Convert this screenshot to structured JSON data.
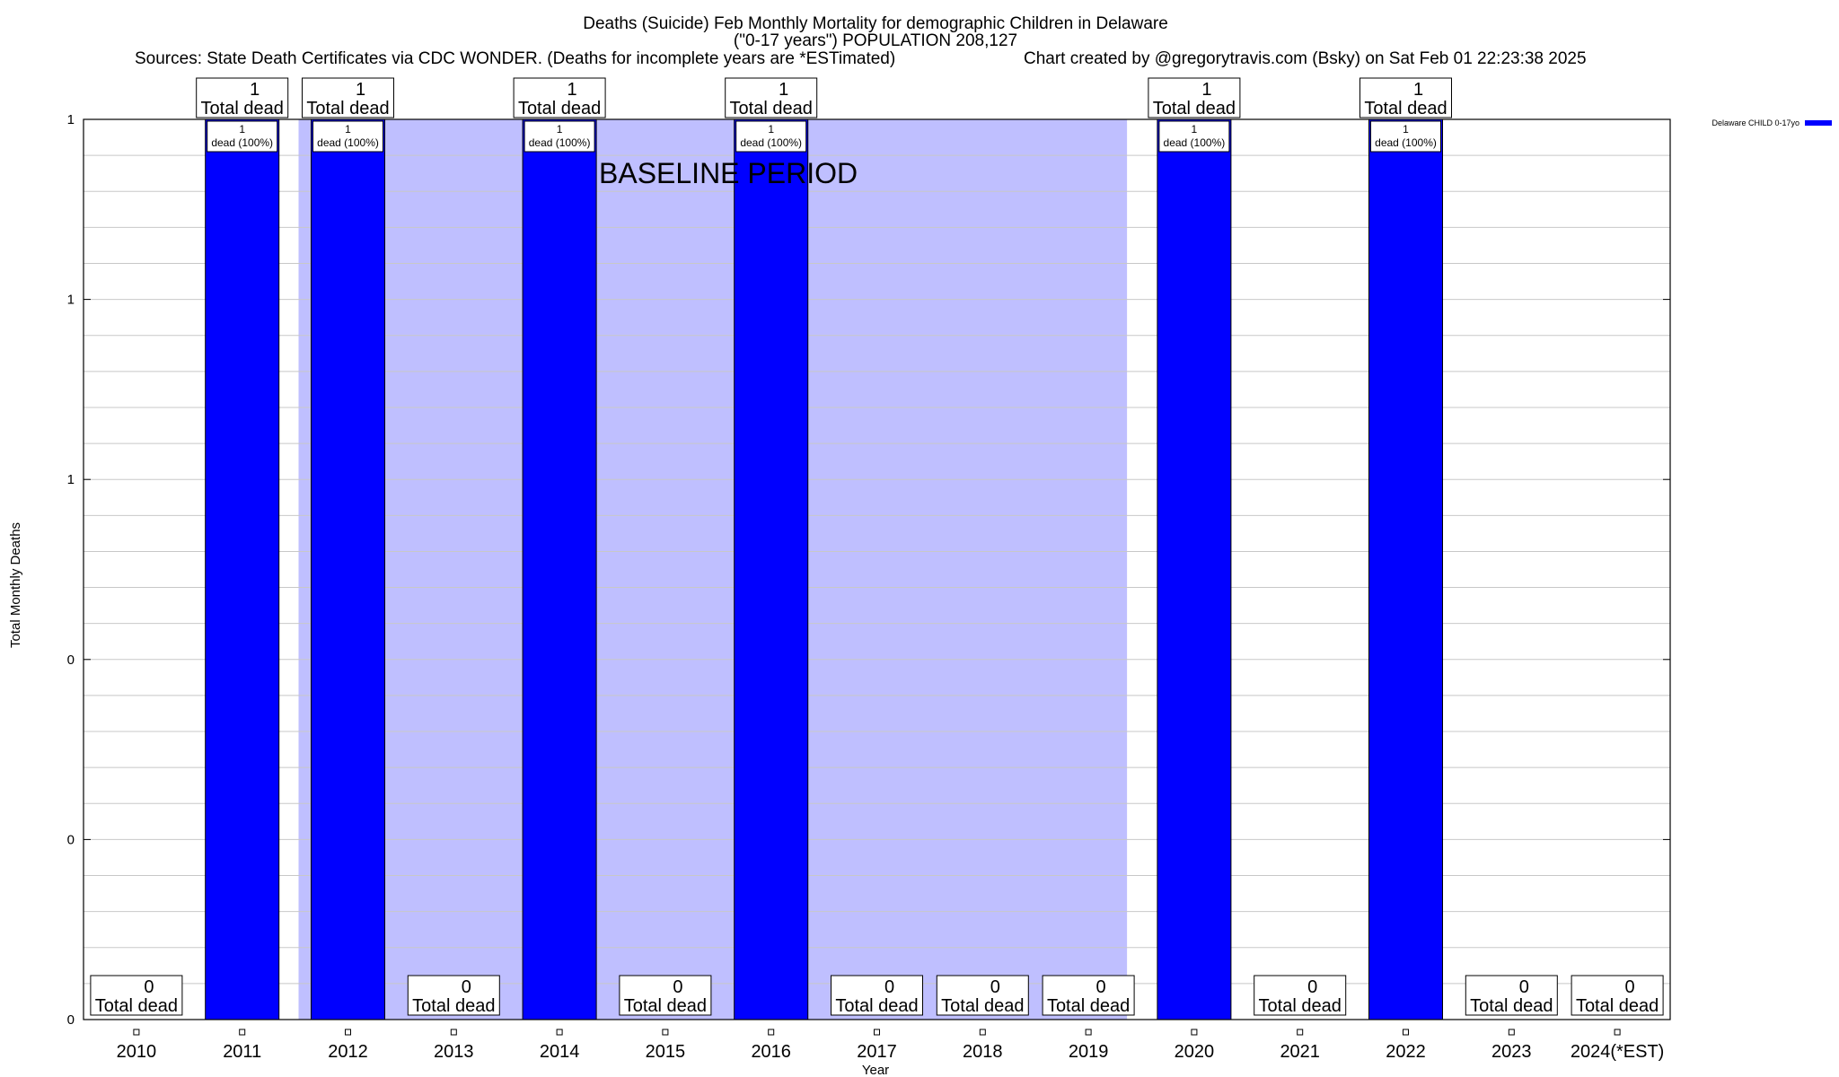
{
  "chart_data": {
    "type": "bar",
    "title_lines": [
      "Deaths (Suicide) Feb Monthly Mortality for demographic Children in Delaware",
      "(\"0-17 years\") POPULATION 208,127"
    ],
    "sources": "Sources: State Death Certificates via CDC WONDER. (Deaths for incomplete years are *ESTimated)",
    "credit": "Chart created by @gregorytravis.com (Bsky) on Sat Feb 01 22:23:38 2025",
    "xlabel": "Year",
    "ylabel": "Total Monthly Deaths",
    "categories": [
      "2010",
      "2011",
      "2012",
      "2013",
      "2014",
      "2015",
      "2016",
      "2017",
      "2018",
      "2019",
      "2020",
      "2021",
      "2022",
      "2023",
      "2024(*EST)"
    ],
    "series": [
      {
        "name": "Delaware CHILD 0-17yo",
        "color": "#0000ff",
        "values": [
          0,
          1,
          1,
          0,
          1,
          0,
          1,
          0,
          0,
          0,
          1,
          0,
          1,
          0,
          0
        ]
      }
    ],
    "value_labels": [
      "0",
      "1",
      "1",
      "0",
      "1",
      "0",
      "1",
      "0",
      "0",
      "0",
      "1",
      "0",
      "1",
      "0",
      "0"
    ],
    "box_label": "Total dead",
    "inner_labels": {
      "1": [
        "1",
        "dead (100%)"
      ],
      "2": [
        "1",
        "dead (100%)"
      ],
      "4": [
        "1",
        "dead (100%)"
      ],
      "6": [
        "1",
        "dead (100%)"
      ],
      "10": [
        "1",
        "dead (100%)"
      ],
      "12": [
        "1",
        "dead (100%)"
      ]
    },
    "ylim": [
      0,
      1
    ],
    "y_tick_values": [
      0,
      0.2,
      0.4,
      0.6,
      0.8,
      1.0
    ],
    "y_tick_labels": [
      "0",
      "0",
      "0",
      "1",
      "1",
      "1"
    ],
    "y_minor_per_major": 5,
    "grid": true,
    "baseline_period": {
      "label": "BASELINE PERIOD",
      "from": "2012",
      "to": "2019",
      "color": "#bfbfff"
    },
    "legend_position": "top-right"
  }
}
